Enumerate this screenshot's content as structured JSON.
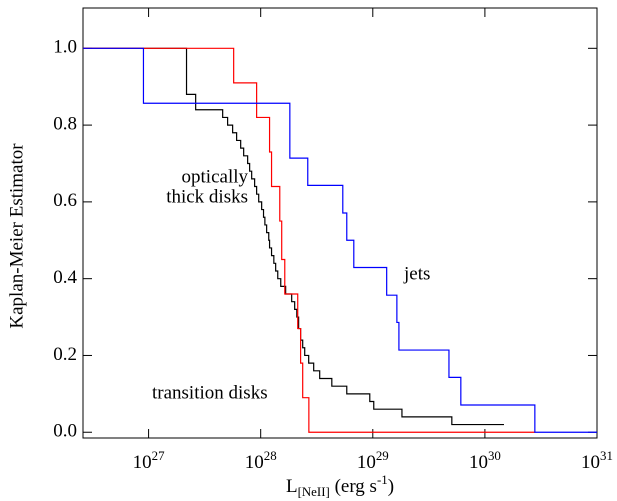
{
  "chart_data": {
    "type": "step",
    "x_label": "L_{[NeII]} (erg s^{-1})",
    "y_label": "Kaplan-Meier Estimator",
    "xscale": "log",
    "xlim": [
      2.6e+26,
      1e+31
    ],
    "ylim": [
      -0.015,
      1.105
    ],
    "xticks": [
      {
        "value": 1e+27,
        "label": "10^{27}"
      },
      {
        "value": 1e+28,
        "label": "10^{28}"
      },
      {
        "value": 1e+29,
        "label": "10^{29}"
      },
      {
        "value": 1e+30,
        "label": "10^{30}"
      },
      {
        "value": 1e+31,
        "label": "10^{31}"
      }
    ],
    "yticks": [
      {
        "value": 0,
        "label": "0.0"
      },
      0.2,
      0.4,
      0.6,
      0.8,
      {
        "value": 1,
        "label": "1.0"
      }
    ],
    "series": [
      {
        "name": "optically thick disks",
        "color": "#000000",
        "x": [
          2.6e+26,
          2.18e+27,
          2.63e+27,
          4.58e+27,
          5.07e+27,
          5.62e+27,
          6.1e+27,
          6.63e+27,
          7.05e+27,
          7.65e+27,
          7.97e+27,
          8.31e+27,
          8.83e+27,
          9.2e+27,
          9.6e+27,
          1.02e+28,
          1.06e+28,
          1.09e+28,
          1.13e+28,
          1.18e+28,
          1.2e+28,
          1.25e+28,
          1.31e+28,
          1.36e+28,
          1.42e+28,
          1.51e+28,
          1.67e+28,
          1.89e+28,
          2.01e+28,
          2.1e+28,
          2.18e+28,
          2.27e+28,
          2.37e+28,
          2.47e+28,
          2.68e+28,
          2.97e+28,
          3.36e+28,
          4.31e+28,
          5.86e+28,
          9.4e+28,
          1.02e+29,
          1.82e+29,
          5.07e+29,
          1.48e+30
        ],
        "values": [
          1,
          0.88,
          0.84,
          0.82,
          0.8,
          0.78,
          0.76,
          0.74,
          0.72,
          0.7,
          0.68,
          0.66,
          0.64,
          0.62,
          0.6,
          0.58,
          0.56,
          0.54,
          0.52,
          0.5,
          0.48,
          0.46,
          0.44,
          0.42,
          0.4,
          0.38,
          0.36,
          0.34,
          0.32,
          0.3,
          0.27,
          0.24,
          0.22,
          0.2,
          0.18,
          0.16,
          0.14,
          0.12,
          0.1,
          0.08,
          0.06,
          0.04,
          0.02,
          0.02
        ]
      },
      {
        "name": "transition disks",
        "color": "#ff0000",
        "x": [
          2.6e+26,
          5.74e+27,
          9.2e+27,
          1.2e+28,
          1.25e+28,
          1.48e+28,
          1.54e+28,
          1.64e+28,
          2.14e+28,
          2.27e+28,
          2.37e+28,
          2.69e+28,
          2.79e+30
        ],
        "values": [
          1,
          0.91,
          0.82,
          0.73,
          0.64,
          0.55,
          0.45,
          0.36,
          0.27,
          0.18,
          0.09,
          0,
          0
        ]
      },
      {
        "name": "jets",
        "color": "#0000ff",
        "x": [
          2.6e+26,
          9e+26,
          1.82e+28,
          2.63e+28,
          5.4e+28,
          5.86e+28,
          6.77e+28,
          1.33e+29,
          1.64e+29,
          1.71e+29,
          4.78e+29,
          6.1e+29,
          2.79e+30,
          1e+31
        ],
        "values": [
          1,
          0.857,
          0.714,
          0.643,
          0.571,
          0.5,
          0.429,
          0.357,
          0.286,
          0.214,
          0.143,
          0.071,
          0,
          0
        ]
      }
    ],
    "annotations": [
      {
        "text": "optically",
        "color": "#000000"
      },
      {
        "text": "thick disks",
        "color": "#000000"
      },
      {
        "text": "jets",
        "color": "#0000ff"
      },
      {
        "text": "transition disks",
        "color": "#ff0000"
      }
    ]
  }
}
